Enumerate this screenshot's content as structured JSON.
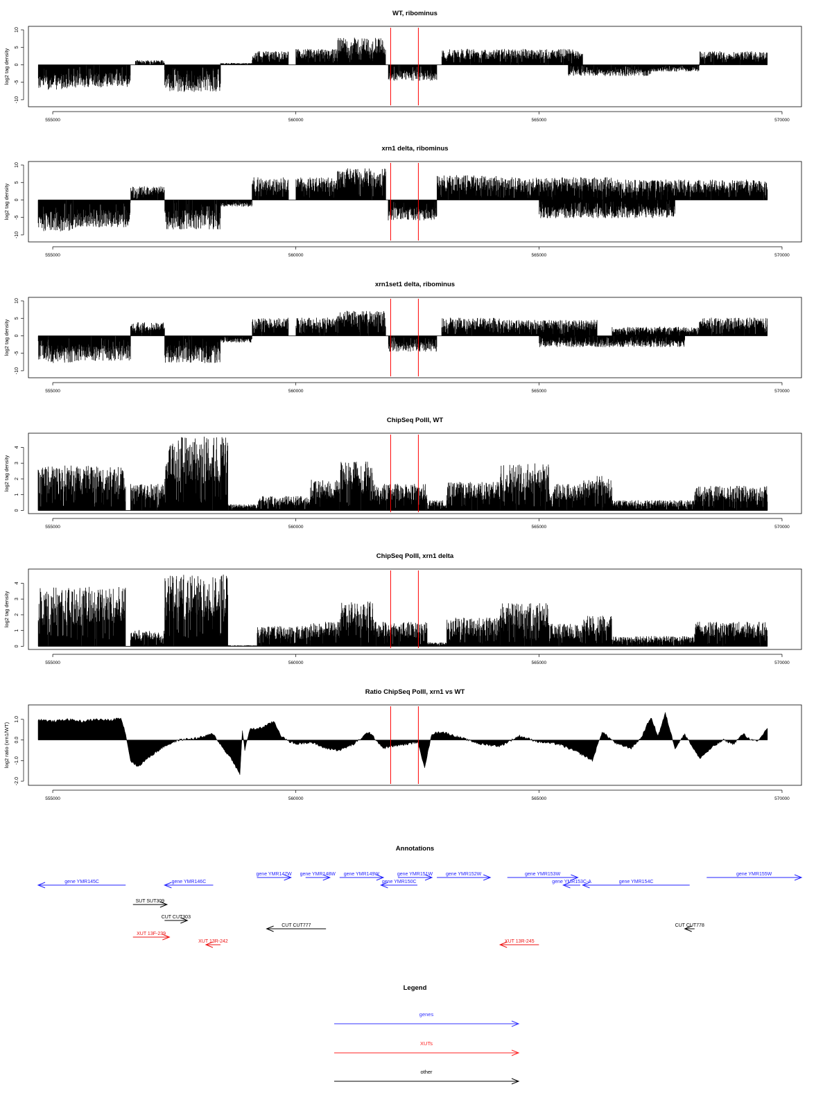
{
  "chart_data": [
    {
      "type": "bar",
      "title": "WT, ribominus",
      "ylabel": "log2 tag density",
      "ylim": [
        -12,
        11
      ],
      "yticks": [
        -10,
        -5,
        0,
        5,
        10
      ],
      "yticklabels": [
        "-10",
        "-5",
        "0",
        "5",
        "10"
      ],
      "xlim": [
        554500,
        570400
      ],
      "xticks": [
        555000,
        560000,
        565000,
        570000
      ],
      "xticklabels": [
        "555000",
        "560000",
        "565000",
        "570000"
      ],
      "markers_x": [
        561950,
        562520
      ],
      "segments": [
        {
          "x0": 554700,
          "x1": 555500,
          "y": -5.5
        },
        {
          "x0": 555500,
          "x1": 556600,
          "y": -5
        },
        {
          "x0": 556700,
          "x1": 557300,
          "y": 1
        },
        {
          "x0": 557300,
          "x1": 558450,
          "y": -6
        },
        {
          "x0": 558450,
          "x1": 559100,
          "y": 0.4
        },
        {
          "x0": 559100,
          "x1": 559850,
          "y": 3
        },
        {
          "x0": 560000,
          "x1": 560850,
          "y": 3.5
        },
        {
          "x0": 560850,
          "x1": 561850,
          "y": 6
        },
        {
          "x0": 561900,
          "x1": 562900,
          "y": -3.5
        },
        {
          "x0": 563000,
          "x1": 564200,
          "y": 3.5
        },
        {
          "x0": 564200,
          "x1": 565900,
          "y": 3.5
        },
        {
          "x0": 565600,
          "x1": 567300,
          "y": -2.5
        },
        {
          "x0": 567300,
          "x1": 568300,
          "y": -1.5
        },
        {
          "x0": 568300,
          "x1": 569700,
          "y": 3
        }
      ]
    },
    {
      "type": "bar",
      "title": "xrn1 delta, ribominus",
      "ylabel": "log2 tag density",
      "ylim": [
        -12,
        11
      ],
      "yticks": [
        -10,
        -5,
        0,
        5,
        10
      ],
      "yticklabels": [
        "-10",
        "-5",
        "0",
        "5",
        "10"
      ],
      "xlim": [
        554500,
        570400
      ],
      "xticks": [
        555000,
        560000,
        565000,
        570000
      ],
      "xticklabels": [
        "555000",
        "560000",
        "565000",
        "570000"
      ],
      "markers_x": [
        561950,
        562520
      ],
      "segments": [
        {
          "x0": 554700,
          "x1": 555500,
          "y": -7
        },
        {
          "x0": 555500,
          "x1": 556600,
          "y": -6
        },
        {
          "x0": 556600,
          "x1": 557300,
          "y": 3
        },
        {
          "x0": 557300,
          "x1": 558450,
          "y": -6.5
        },
        {
          "x0": 558450,
          "x1": 559100,
          "y": -1.5
        },
        {
          "x0": 559100,
          "x1": 559850,
          "y": 5
        },
        {
          "x0": 560000,
          "x1": 560850,
          "y": 5
        },
        {
          "x0": 560850,
          "x1": 561850,
          "y": 7
        },
        {
          "x0": 561900,
          "x1": 562900,
          "y": -4.5
        },
        {
          "x0": 562900,
          "x1": 564200,
          "y": 5.5
        },
        {
          "x0": 564200,
          "x1": 566500,
          "y": 5
        },
        {
          "x0": 565000,
          "x1": 567800,
          "y": -4
        },
        {
          "x0": 566500,
          "x1": 569700,
          "y": 4.5
        }
      ]
    },
    {
      "type": "bar",
      "title": "xrn1set1 delta, ribominus",
      "ylabel": "log2 tag density",
      "ylim": [
        -12,
        11
      ],
      "yticks": [
        -10,
        -5,
        0,
        5,
        10
      ],
      "yticklabels": [
        "-10",
        "-5",
        "0",
        "5",
        "10"
      ],
      "xlim": [
        554500,
        570400
      ],
      "xticks": [
        555000,
        560000,
        565000,
        570000
      ],
      "xticklabels": [
        "555000",
        "560000",
        "565000",
        "570000"
      ],
      "markers_x": [
        561950,
        562520
      ],
      "segments": [
        {
          "x0": 554700,
          "x1": 555500,
          "y": -6
        },
        {
          "x0": 555500,
          "x1": 556600,
          "y": -5.5
        },
        {
          "x0": 556600,
          "x1": 557300,
          "y": 3
        },
        {
          "x0": 557300,
          "x1": 558450,
          "y": -6
        },
        {
          "x0": 558450,
          "x1": 559100,
          "y": -1.5
        },
        {
          "x0": 559100,
          "x1": 559850,
          "y": 4
        },
        {
          "x0": 560000,
          "x1": 560850,
          "y": 4
        },
        {
          "x0": 560850,
          "x1": 561850,
          "y": 5.5
        },
        {
          "x0": 561900,
          "x1": 562900,
          "y": -3.5
        },
        {
          "x0": 563000,
          "x1": 564200,
          "y": 4
        },
        {
          "x0": 564200,
          "x1": 566200,
          "y": 3.5
        },
        {
          "x0": 565000,
          "x1": 568000,
          "y": -2.5
        },
        {
          "x0": 566500,
          "x1": 568300,
          "y": 2
        },
        {
          "x0": 568300,
          "x1": 569700,
          "y": 4
        }
      ]
    },
    {
      "type": "bar",
      "title": "ChipSeq PolII, WT",
      "ylabel": "log2 tag density",
      "ylim": [
        -0.2,
        4.9
      ],
      "yticks": [
        0,
        1,
        2,
        3,
        4
      ],
      "yticklabels": [
        "0",
        "1",
        "2",
        "3",
        "4"
      ],
      "xlim": [
        554500,
        570400
      ],
      "xticks": [
        555000,
        560000,
        565000,
        570000
      ],
      "xticklabels": [
        "555000",
        "560000",
        "565000",
        "570000"
      ],
      "markers_x": [
        561950,
        562520
      ],
      "segments": [
        {
          "x0": 554700,
          "x1": 556500,
          "y": 2.2
        },
        {
          "x0": 556600,
          "x1": 557300,
          "y": 1.3
        },
        {
          "x0": 557300,
          "x1": 558600,
          "y": 3.6
        },
        {
          "x0": 558600,
          "x1": 559200,
          "y": 0.3
        },
        {
          "x0": 559200,
          "x1": 560300,
          "y": 0.7
        },
        {
          "x0": 560300,
          "x1": 560900,
          "y": 1.5
        },
        {
          "x0": 560900,
          "x1": 561600,
          "y": 2.4
        },
        {
          "x0": 561600,
          "x1": 562700,
          "y": 1.3
        },
        {
          "x0": 562700,
          "x1": 563100,
          "y": 0.5
        },
        {
          "x0": 563100,
          "x1": 564200,
          "y": 1.4
        },
        {
          "x0": 564200,
          "x1": 565200,
          "y": 2.3
        },
        {
          "x0": 565200,
          "x1": 565900,
          "y": 1.3
        },
        {
          "x0": 565900,
          "x1": 566500,
          "y": 1.7
        },
        {
          "x0": 566500,
          "x1": 568200,
          "y": 0.5
        },
        {
          "x0": 568200,
          "x1": 569700,
          "y": 1.2
        }
      ]
    },
    {
      "type": "bar",
      "title": "ChipSeq PolII, xrn1 delta",
      "ylabel": "log2 tag density",
      "ylim": [
        -0.2,
        4.9
      ],
      "yticks": [
        0,
        1,
        2,
        3,
        4
      ],
      "yticklabels": [
        "0",
        "1",
        "2",
        "3",
        "4"
      ],
      "xlim": [
        554500,
        570400
      ],
      "xticks": [
        555000,
        560000,
        565000,
        570000
      ],
      "xticklabels": [
        "555000",
        "560000",
        "565000",
        "570000"
      ],
      "markers_x": [
        561950,
        562520
      ],
      "segments": [
        {
          "x0": 554700,
          "x1": 556500,
          "y": 2.9
        },
        {
          "x0": 556600,
          "x1": 557300,
          "y": 0.8
        },
        {
          "x0": 557300,
          "x1": 558600,
          "y": 3.5
        },
        {
          "x0": 558600,
          "x1": 559200,
          "y": 0.05
        },
        {
          "x0": 559200,
          "x1": 560300,
          "y": 1.0
        },
        {
          "x0": 560300,
          "x1": 560900,
          "y": 1.2
        },
        {
          "x0": 560900,
          "x1": 561600,
          "y": 2.2
        },
        {
          "x0": 561600,
          "x1": 562700,
          "y": 1.2
        },
        {
          "x0": 562700,
          "x1": 563100,
          "y": 0.2
        },
        {
          "x0": 563100,
          "x1": 564200,
          "y": 1.4
        },
        {
          "x0": 564200,
          "x1": 565200,
          "y": 2.1
        },
        {
          "x0": 565200,
          "x1": 565900,
          "y": 1.1
        },
        {
          "x0": 565900,
          "x1": 566500,
          "y": 1.5
        },
        {
          "x0": 566500,
          "x1": 568200,
          "y": 0.5
        },
        {
          "x0": 568200,
          "x1": 569700,
          "y": 1.2
        }
      ]
    },
    {
      "type": "area",
      "title": "Ratio ChipSeq PolII, xrn1 vs WT",
      "ylabel": "log2 ratio (xrn1/WT)",
      "ylim": [
        -2.2,
        1.7
      ],
      "yticks": [
        -2,
        -1,
        0,
        1
      ],
      "yticklabels": [
        "-2.0",
        "-1.0",
        "0.0",
        "1.0"
      ],
      "xlim": [
        554500,
        570400
      ],
      "xticks": [
        555000,
        560000,
        565000,
        570000
      ],
      "xticklabels": [
        "555000",
        "560000",
        "565000",
        "570000"
      ],
      "markers_x": [
        561950,
        562520
      ],
      "x": [
        554700,
        555000,
        555300,
        555600,
        555900,
        556200,
        556400,
        556500,
        556600,
        556750,
        557000,
        557300,
        557600,
        558000,
        558300,
        558500,
        558700,
        558850,
        558900,
        558950,
        559050,
        559300,
        559550,
        559700,
        559800,
        560000,
        560300,
        560600,
        560900,
        561200,
        561500,
        561800,
        562000,
        562300,
        562500,
        562650,
        562800,
        563000,
        563400,
        563800,
        564200,
        564600,
        565000,
        565400,
        565800,
        566100,
        566300,
        566600,
        566900,
        567100,
        567300,
        567450,
        567600,
        567800,
        568000,
        568300,
        568600,
        568800,
        569000,
        569200,
        569300,
        569500,
        569700
      ],
      "y": [
        1.0,
        0.9,
        1.0,
        0.9,
        1.0,
        0.95,
        1.1,
        0.3,
        -1.0,
        -1.3,
        -0.8,
        -0.3,
        0.0,
        0.1,
        0.3,
        -0.4,
        -1.0,
        -1.7,
        0.5,
        -0.5,
        0.5,
        0.6,
        0.9,
        0.2,
        0.0,
        -0.2,
        -0.1,
        -0.4,
        -0.5,
        -0.2,
        0.4,
        -0.4,
        -0.3,
        -0.2,
        -0.1,
        -1.3,
        0.3,
        0.4,
        0.1,
        -0.2,
        -0.3,
        0.2,
        -0.1,
        -0.2,
        -0.6,
        -1.0,
        0.4,
        -0.2,
        -0.4,
        0.1,
        1.1,
        0.2,
        1.3,
        -0.4,
        0.3,
        -0.9,
        -0.3,
        0.0,
        -0.2,
        0.3,
        0.1,
        -0.1,
        0.6
      ]
    }
  ],
  "annotations": {
    "title": "Annotations",
    "xlim": [
      554500,
      570400
    ],
    "genes": [
      {
        "label": "gene YMR145C",
        "x0": 554700,
        "x1": 556500,
        "dir": "left",
        "row": 2
      },
      {
        "label": "gene YMR146C",
        "x0": 557300,
        "x1": 558300,
        "dir": "left",
        "row": 2
      },
      {
        "label": "gene YMR147W",
        "x0": 559200,
        "x1": 559900,
        "dir": "right",
        "row": 1
      },
      {
        "label": "gene YMR148W",
        "x0": 560200,
        "x1": 560700,
        "dir": "right",
        "row": 1
      },
      {
        "label": "gene YMR149W",
        "x0": 560900,
        "x1": 561800,
        "dir": "right",
        "row": 1
      },
      {
        "label": "gene YMR150C",
        "x0": 561750,
        "x1": 562500,
        "dir": "left",
        "row": 2
      },
      {
        "label": "gene YMR151W",
        "x0": 562100,
        "x1": 562800,
        "dir": "right",
        "row": 1
      },
      {
        "label": "gene YMR152W",
        "x0": 562900,
        "x1": 564000,
        "dir": "right",
        "row": 1
      },
      {
        "label": "gene YMR153W",
        "x0": 564350,
        "x1": 565800,
        "dir": "right",
        "row": 1
      },
      {
        "label": "gene YMR153C-A",
        "x0": 565500,
        "x1": 565850,
        "dir": "left",
        "row": 2
      },
      {
        "label": "gene YMR154C",
        "x0": 565900,
        "x1": 568100,
        "dir": "left",
        "row": 2
      },
      {
        "label": "gene YMR155W",
        "x0": 568450,
        "x1": 570400,
        "dir": "right",
        "row": 1
      }
    ],
    "others": [
      {
        "label": "SUT SUT309",
        "x0": 556650,
        "x1": 557350,
        "dir": "right",
        "row": 3
      },
      {
        "label": "CUT CUT303",
        "x0": 557300,
        "x1": 557770,
        "dir": "right",
        "row": 4
      },
      {
        "label": "CUT CUT777",
        "x0": 559400,
        "x1": 560620,
        "dir": "left",
        "row": 5
      },
      {
        "label": "CUT CUT778",
        "x0": 568000,
        "x1": 568200,
        "dir": "left",
        "row": 5
      }
    ],
    "xuts": [
      {
        "label": "XUT 13F-239",
        "x0": 556650,
        "x1": 557400,
        "dir": "right",
        "row": 6
      },
      {
        "label": "XUT 13R-242",
        "x0": 558150,
        "x1": 558450,
        "dir": "left",
        "row": 7
      },
      {
        "label": "XUT 13R-245",
        "x0": 564200,
        "x1": 565000,
        "dir": "left",
        "row": 7
      }
    ]
  },
  "legend": {
    "title": "Legend",
    "items": [
      {
        "label": "genes",
        "color": "#3333ff"
      },
      {
        "label": "XUTs",
        "color": "#ff2222"
      },
      {
        "label": "other",
        "color": "#000000"
      }
    ]
  },
  "colors": {
    "gene": "#2020ff",
    "xut": "#ee1111",
    "other": "#000000",
    "marker": "#ff0000"
  }
}
